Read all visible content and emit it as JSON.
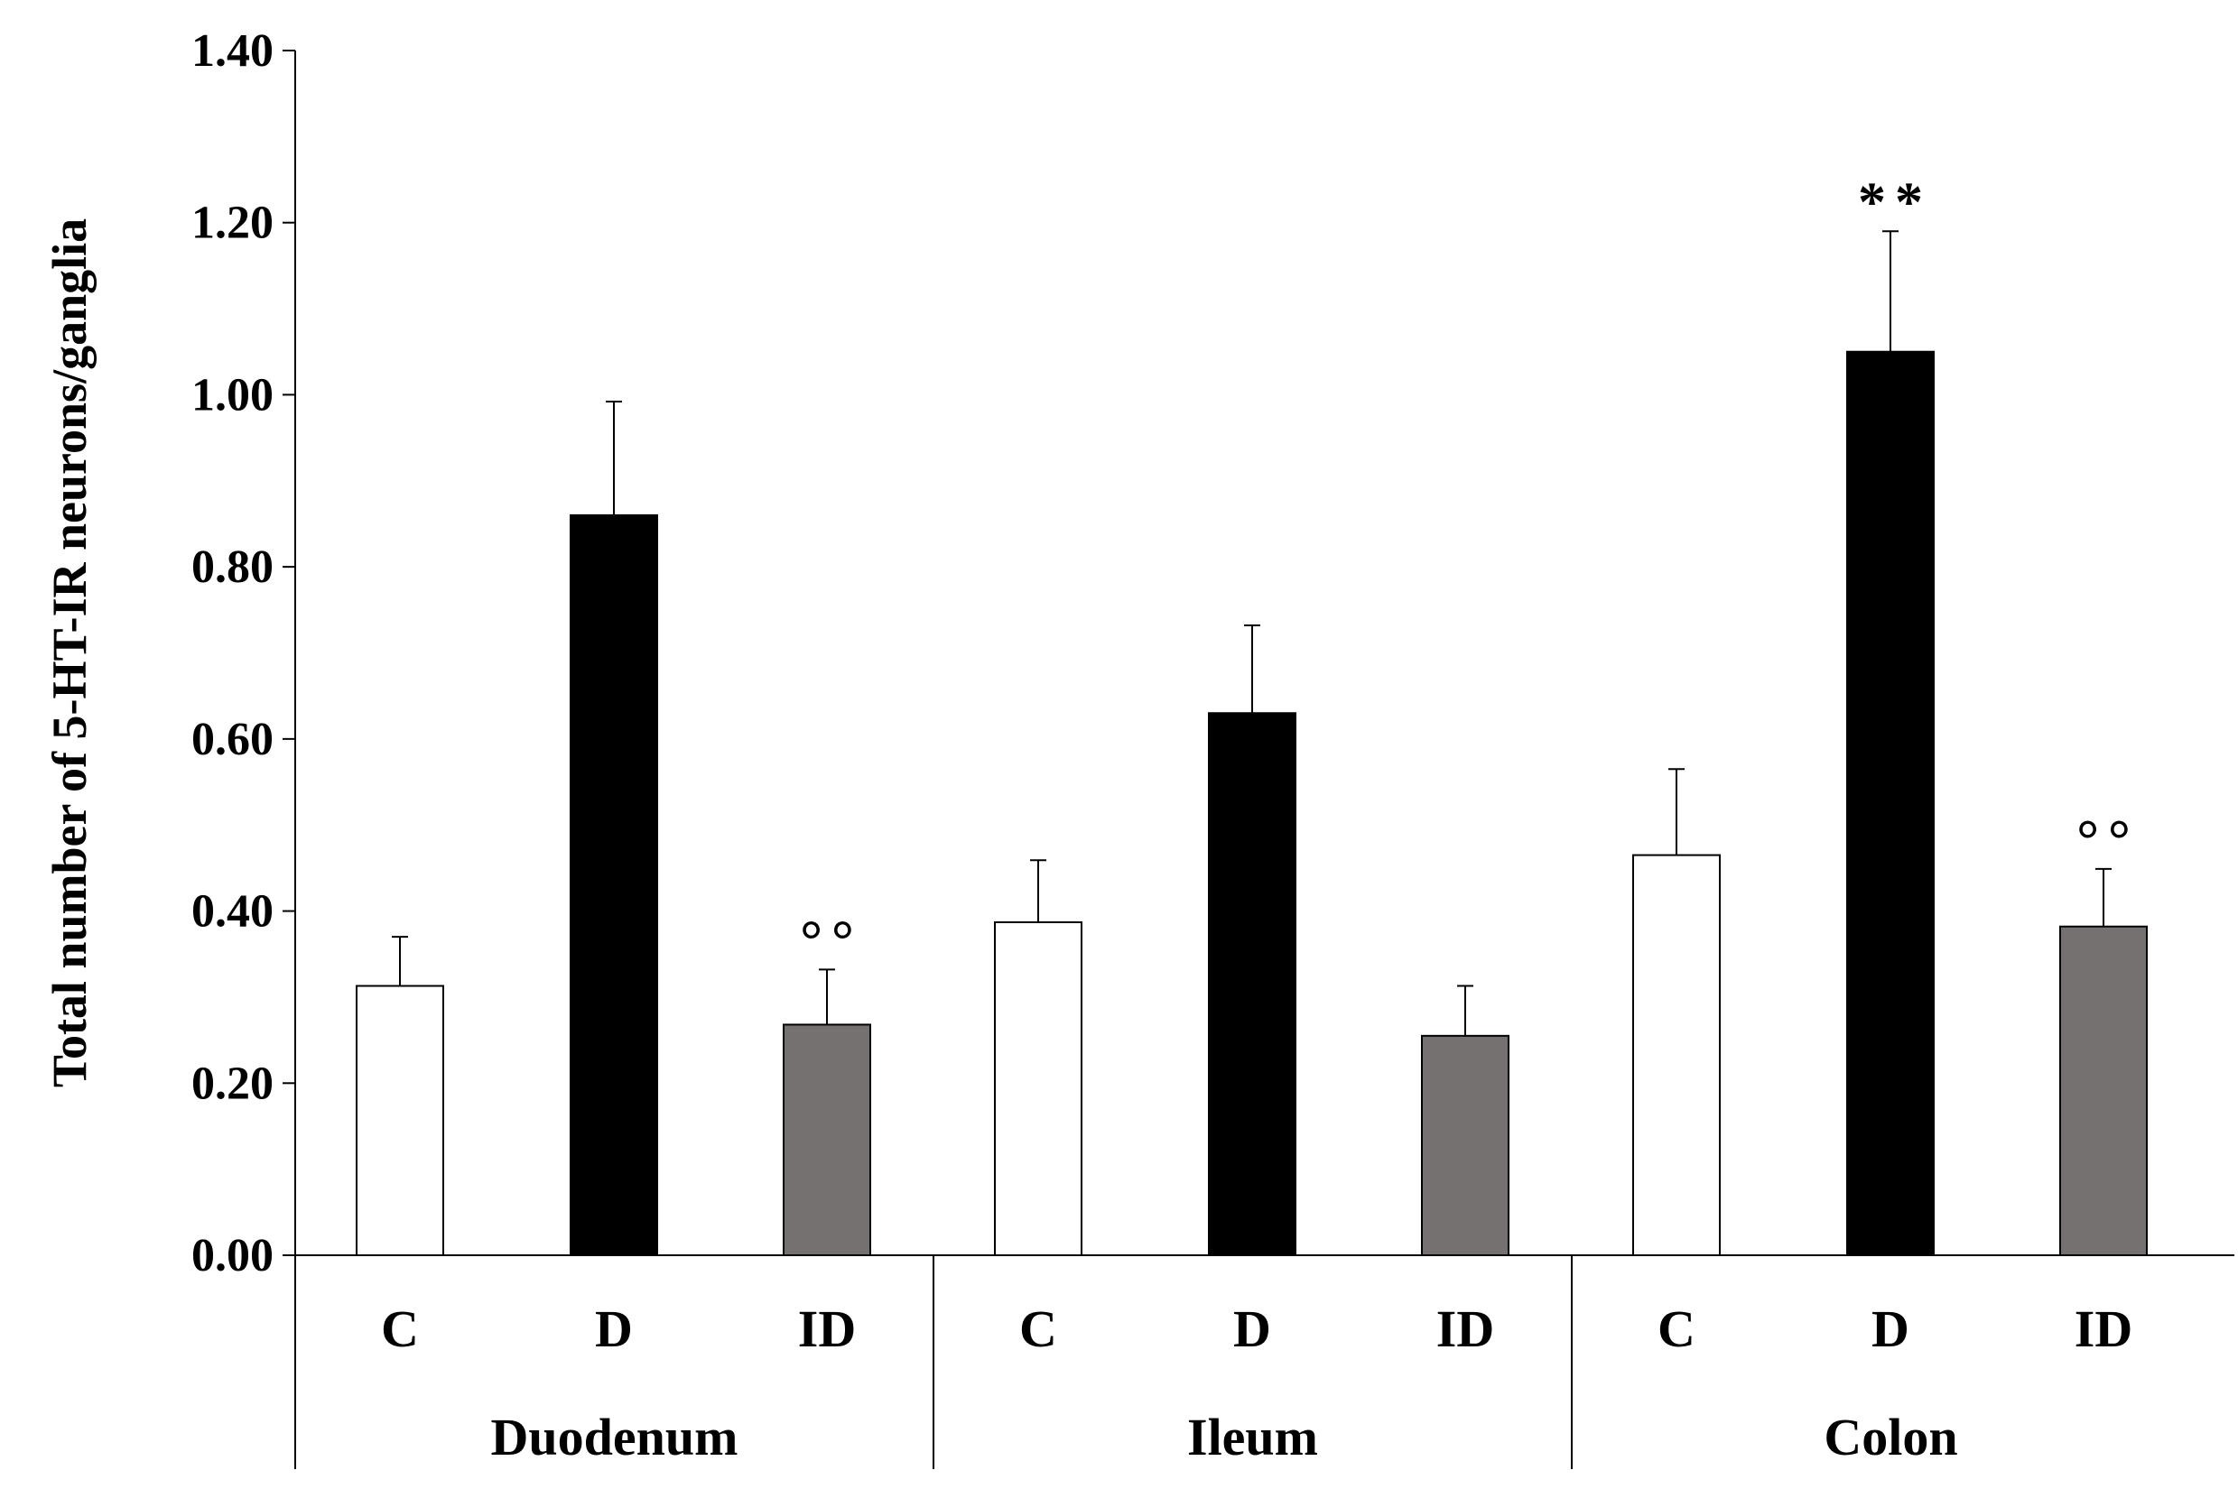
{
  "chart_data": {
    "type": "bar",
    "ylabel": "Total number of 5-HT-IR neurons/ganglia",
    "ylim": [
      0,
      1.4
    ],
    "yticks": [
      "0.00",
      "0.20",
      "0.40",
      "0.60",
      "0.80",
      "1.00",
      "1.20",
      "1.40"
    ],
    "groups": [
      {
        "name": "Duodenum",
        "bars": [
          {
            "label": "C",
            "value": 0.313,
            "error": 0.057,
            "color": "#ffffff",
            "annotation": ""
          },
          {
            "label": "D",
            "value": 0.86,
            "error": 0.132,
            "color": "#000000",
            "annotation": ""
          },
          {
            "label": "ID",
            "value": 0.268,
            "error": 0.064,
            "color": "#767171",
            "annotation": "°°"
          }
        ]
      },
      {
        "name": "Ileum",
        "bars": [
          {
            "label": "C",
            "value": 0.387,
            "error": 0.072,
            "color": "#ffffff",
            "annotation": ""
          },
          {
            "label": "D",
            "value": 0.63,
            "error": 0.102,
            "color": "#000000",
            "annotation": ""
          },
          {
            "label": "ID",
            "value": 0.255,
            "error": 0.058,
            "color": "#767171",
            "annotation": ""
          }
        ]
      },
      {
        "name": "Colon",
        "bars": [
          {
            "label": "C",
            "value": 0.465,
            "error": 0.1,
            "color": "#ffffff",
            "annotation": ""
          },
          {
            "label": "D",
            "value": 1.05,
            "error": 0.14,
            "color": "#000000",
            "annotation": "**"
          },
          {
            "label": "ID",
            "value": 0.382,
            "error": 0.067,
            "color": "#767171",
            "annotation": "°°"
          }
        ]
      }
    ]
  }
}
